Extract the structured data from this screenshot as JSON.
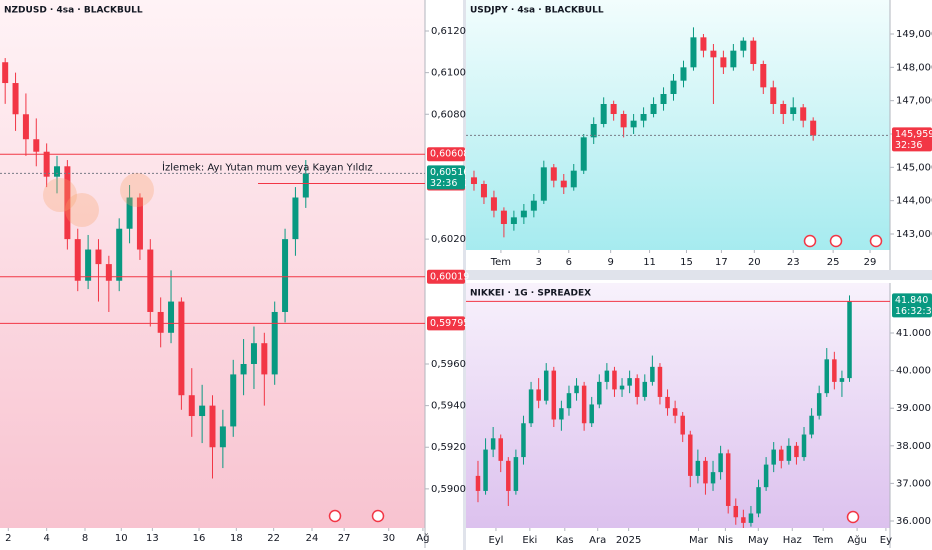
{
  "chart_data": [
    {
      "type": "candlestick",
      "title": "NZDUSD · 4sa · BLACKBULL",
      "annotation": "İzlemek: Ayı Yutan mum veya Kayan Yıldız",
      "up_color": "#089981",
      "down_color": "#f23645",
      "ylim": [
        0.58812,
        0.61349
      ],
      "yticks": [
        {
          "value": 0.59,
          "label": "0,59000"
        },
        {
          "value": 0.592,
          "label": "0,59200"
        },
        {
          "value": 0.594,
          "label": "0,59400"
        },
        {
          "value": 0.596,
          "label": "0,59600"
        },
        {
          "value": 0.602,
          "label": "0,60200"
        },
        {
          "value": 0.608,
          "label": "0,60800"
        },
        {
          "value": 0.61,
          "label": "0,61000"
        },
        {
          "value": 0.612,
          "label": "0,61200"
        }
      ],
      "xlim": [
        0,
        41
      ],
      "xticks": [
        {
          "value": 0.8,
          "label": "2"
        },
        {
          "value": 4.5,
          "label": "4"
        },
        {
          "value": 8.2,
          "label": "8"
        },
        {
          "value": 11.7,
          "label": "10"
        },
        {
          "value": 14.7,
          "label": "13"
        },
        {
          "value": 19.2,
          "label": "16"
        },
        {
          "value": 22.8,
          "label": "18"
        },
        {
          "value": 26.4,
          "label": "22"
        },
        {
          "value": 30.1,
          "label": "24"
        },
        {
          "value": 33.2,
          "label": "27"
        },
        {
          "value": 37.5,
          "label": "30"
        },
        {
          "value": 40.8,
          "label": "Ağ"
        }
      ],
      "ohlc": [
        [
          0.6105,
          0.6107,
          0.6085,
          0.6095
        ],
        [
          0.6095,
          0.61,
          0.6072,
          0.608
        ],
        [
          0.608,
          0.609,
          0.606,
          0.6068
        ],
        [
          0.6068,
          0.6078,
          0.6055,
          0.6062
        ],
        [
          0.6062,
          0.6066,
          0.6045,
          0.605
        ],
        [
          0.605,
          0.606,
          0.6042,
          0.6055
        ],
        [
          0.6055,
          0.6058,
          0.6015,
          0.602
        ],
        [
          0.602,
          0.6025,
          0.5995,
          0.6
        ],
        [
          0.6,
          0.6022,
          0.5996,
          0.6015
        ],
        [
          0.6015,
          0.602,
          0.599,
          0.6008
        ],
        [
          0.6008,
          0.6012,
          0.5985,
          0.6
        ],
        [
          0.6,
          0.603,
          0.5995,
          0.6025
        ],
        [
          0.6025,
          0.6046,
          0.6018,
          0.604
        ],
        [
          0.604,
          0.6042,
          0.601,
          0.6015
        ],
        [
          0.6015,
          0.602,
          0.5978,
          0.5985
        ],
        [
          0.5985,
          0.5992,
          0.5968,
          0.5975
        ],
        [
          0.5975,
          0.6005,
          0.597,
          0.599
        ],
        [
          0.599,
          0.5992,
          0.5938,
          0.5945
        ],
        [
          0.5945,
          0.5958,
          0.5925,
          0.5935
        ],
        [
          0.5935,
          0.595,
          0.5922,
          0.594
        ],
        [
          0.594,
          0.5945,
          0.5905,
          0.592
        ],
        [
          0.592,
          0.5938,
          0.591,
          0.593
        ],
        [
          0.593,
          0.5962,
          0.5925,
          0.5955
        ],
        [
          0.5955,
          0.5972,
          0.5945,
          0.596
        ],
        [
          0.596,
          0.5978,
          0.5948,
          0.597
        ],
        [
          0.597,
          0.5975,
          0.594,
          0.5955
        ],
        [
          0.5955,
          0.599,
          0.595,
          0.5985
        ],
        [
          0.5985,
          0.6025,
          0.598,
          0.602
        ],
        [
          0.602,
          0.6045,
          0.6012,
          0.604
        ],
        [
          0.604,
          0.6058,
          0.6035,
          0.60516
        ]
      ],
      "price_lines": [
        {
          "value": 0.60608,
          "label": "0,60608"
        },
        {
          "value": 0.60467,
          "label": "0,60467"
        },
        {
          "value": 0.60019,
          "label": "0,60019"
        },
        {
          "value": 0.59795,
          "label": "0,59795"
        }
      ],
      "last": {
        "value": 0.60516,
        "label": "0,60516",
        "countdown": "32:36"
      }
    },
    {
      "type": "candlestick",
      "title": "USDJPY · 4sa · BLACKBULL",
      "up_color": "#089981",
      "down_color": "#f23645",
      "ylim": [
        142.52,
        150.02
      ],
      "yticks": [
        {
          "value": 143,
          "label": "143,000"
        },
        {
          "value": 144,
          "label": "144,000"
        },
        {
          "value": 145,
          "label": "145,000"
        },
        {
          "value": 146,
          "label": "146,000"
        },
        {
          "value": 147,
          "label": "147,000"
        },
        {
          "value": 148,
          "label": "148,000"
        },
        {
          "value": 149,
          "label": "149,000"
        }
      ],
      "xlim": [
        -0.3,
        42.2
      ],
      "xticks": [
        {
          "value": 3.2,
          "label": "Tem"
        },
        {
          "value": 7.0,
          "label": "3"
        },
        {
          "value": 10.0,
          "label": "6"
        },
        {
          "value": 14.2,
          "label": "9"
        },
        {
          "value": 18.1,
          "label": "11"
        },
        {
          "value": 21.8,
          "label": "15"
        },
        {
          "value": 25.3,
          "label": "17"
        },
        {
          "value": 28.6,
          "label": "20"
        },
        {
          "value": 32.5,
          "label": "23"
        },
        {
          "value": 36.5,
          "label": "25"
        },
        {
          "value": 40.2,
          "label": "29"
        }
      ],
      "ohlc": [
        [
          144.7,
          144.9,
          144.3,
          144.5
        ],
        [
          144.5,
          144.6,
          143.9,
          144.1
        ],
        [
          144.1,
          144.3,
          143.5,
          143.7
        ],
        [
          143.7,
          143.8,
          142.9,
          143.3
        ],
        [
          143.3,
          143.7,
          143.1,
          143.5
        ],
        [
          143.5,
          143.9,
          143.3,
          143.7
        ],
        [
          143.7,
          144.2,
          143.5,
          144.0
        ],
        [
          144.0,
          145.2,
          143.9,
          145.0
        ],
        [
          145.0,
          145.1,
          144.4,
          144.6
        ],
        [
          144.6,
          144.8,
          144.2,
          144.4
        ],
        [
          144.4,
          145.1,
          144.3,
          144.9
        ],
        [
          144.9,
          146.0,
          144.8,
          145.9
        ],
        [
          145.9,
          146.5,
          145.7,
          146.3
        ],
        [
          146.3,
          147.1,
          146.2,
          146.9
        ],
        [
          146.9,
          147.0,
          146.4,
          146.6
        ],
        [
          146.6,
          146.7,
          145.9,
          146.2
        ],
        [
          146.2,
          146.6,
          146.0,
          146.4
        ],
        [
          146.4,
          146.8,
          146.2,
          146.6
        ],
        [
          146.6,
          147.1,
          146.5,
          146.9
        ],
        [
          146.9,
          147.4,
          146.7,
          147.2
        ],
        [
          147.2,
          147.8,
          147.0,
          147.6
        ],
        [
          147.6,
          148.2,
          147.4,
          148.0
        ],
        [
          148.0,
          149.2,
          147.9,
          148.9
        ],
        [
          148.9,
          149.0,
          148.3,
          148.5
        ],
        [
          148.5,
          148.7,
          146.9,
          148.3
        ],
        [
          148.3,
          148.5,
          147.8,
          148.0
        ],
        [
          148.0,
          148.7,
          147.9,
          148.5
        ],
        [
          148.5,
          148.9,
          148.3,
          148.8
        ],
        [
          148.8,
          148.9,
          147.9,
          148.1
        ],
        [
          148.1,
          148.2,
          147.2,
          147.4
        ],
        [
          147.4,
          147.6,
          146.6,
          146.9
        ],
        [
          146.9,
          147.0,
          146.3,
          146.6
        ],
        [
          146.6,
          147.1,
          146.4,
          146.8
        ],
        [
          146.8,
          146.9,
          146.2,
          146.4
        ],
        [
          146.4,
          146.5,
          145.8,
          145.959
        ]
      ],
      "last": {
        "value": 145.959,
        "label": "145,959",
        "countdown": "32:36"
      }
    },
    {
      "type": "candlestick",
      "title": "NIKKEI · 1G · SPREADEX",
      "up_color": "#089981",
      "down_color": "#f23645",
      "ylim": [
        35814,
        42330
      ],
      "yticks": [
        {
          "value": 36000,
          "label": "36.000"
        },
        {
          "value": 37000,
          "label": "37.000"
        },
        {
          "value": 38000,
          "label": "38.000"
        },
        {
          "value": 39000,
          "label": "39.000"
        },
        {
          "value": 40000,
          "label": "40.000"
        },
        {
          "value": 41000,
          "label": "41.000"
        }
      ],
      "xlim": [
        -1.08,
        54.84
      ],
      "xticks": [
        {
          "value": 2.87,
          "label": "Eyl"
        },
        {
          "value": 7.34,
          "label": "Eki"
        },
        {
          "value": 11.95,
          "label": "Kas"
        },
        {
          "value": 16.29,
          "label": "Ara"
        },
        {
          "value": 20.37,
          "label": "2025"
        },
        {
          "value": 29.58,
          "label": "Mar"
        },
        {
          "value": 33.13,
          "label": "Nis"
        },
        {
          "value": 37.47,
          "label": "May"
        },
        {
          "value": 41.95,
          "label": "Haz"
        },
        {
          "value": 46.03,
          "label": "Tem"
        },
        {
          "value": 50.5,
          "label": "Ağu"
        },
        {
          "value": 54.3,
          "label": "Ey"
        }
      ],
      "ohlc": [
        [
          37200,
          37600,
          36500,
          36800
        ],
        [
          36800,
          38200,
          36700,
          37900
        ],
        [
          37900,
          38500,
          37700,
          38200
        ],
        [
          38200,
          38300,
          37300,
          37600
        ],
        [
          37600,
          37700,
          36400,
          36800
        ],
        [
          36800,
          37900,
          36700,
          37700
        ],
        [
          37700,
          38800,
          37500,
          38600
        ],
        [
          38600,
          39700,
          38500,
          39500
        ],
        [
          39500,
          39800,
          39000,
          39200
        ],
        [
          39200,
          40200,
          39100,
          40000
        ],
        [
          40000,
          40100,
          38500,
          38700
        ],
        [
          38700,
          39200,
          38400,
          39000
        ],
        [
          39000,
          39600,
          38800,
          39400
        ],
        [
          39400,
          39800,
          39200,
          39600
        ],
        [
          39600,
          39700,
          38400,
          38600
        ],
        [
          38600,
          39300,
          38500,
          39100
        ],
        [
          39100,
          39900,
          39000,
          39700
        ],
        [
          39700,
          40200,
          39500,
          40000
        ],
        [
          40000,
          40100,
          39300,
          39500
        ],
        [
          39500,
          39800,
          39300,
          39600
        ],
        [
          39600,
          40000,
          39400,
          39800
        ],
        [
          39800,
          39900,
          39100,
          39300
        ],
        [
          39300,
          39900,
          39200,
          39700
        ],
        [
          39700,
          40400,
          39600,
          40100
        ],
        [
          40100,
          40200,
          39100,
          39300
        ],
        [
          39300,
          39500,
          38800,
          39000
        ],
        [
          39000,
          39200,
          38600,
          38800
        ],
        [
          38800,
          38900,
          38100,
          38300
        ],
        [
          38300,
          38400,
          36900,
          37200
        ],
        [
          37200,
          37900,
          37000,
          37600
        ],
        [
          37600,
          37700,
          36700,
          37000
        ],
        [
          37000,
          37600,
          36800,
          37300
        ],
        [
          37300,
          38000,
          37100,
          37800
        ],
        [
          37800,
          37900,
          36200,
          36400
        ],
        [
          36400,
          36600,
          35900,
          36100
        ],
        [
          36100,
          36300,
          35800,
          35950
        ],
        [
          35950,
          36400,
          35850,
          36200
        ],
        [
          36200,
          37100,
          36100,
          36900
        ],
        [
          36900,
          37700,
          36800,
          37500
        ],
        [
          37500,
          38100,
          37300,
          37900
        ],
        [
          37900,
          38000,
          37400,
          37600
        ],
        [
          37600,
          38200,
          37500,
          38000
        ],
        [
          38000,
          38100,
          37500,
          37700
        ],
        [
          37700,
          38500,
          37600,
          38300
        ],
        [
          38300,
          39000,
          38200,
          38800
        ],
        [
          38800,
          39600,
          38700,
          39400
        ],
        [
          39400,
          40600,
          39300,
          40300
        ],
        [
          40300,
          40500,
          39500,
          39700
        ],
        [
          39700,
          40000,
          39300,
          39800
        ],
        [
          39800,
          42000,
          39700,
          41840
        ]
      ],
      "last": {
        "value": 41840,
        "label": "41.840",
        "countdown": "16:32:35"
      }
    }
  ]
}
